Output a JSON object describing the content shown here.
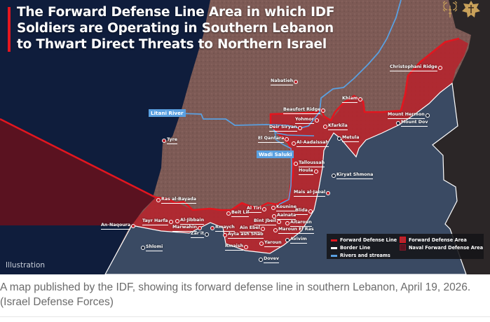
{
  "map": {
    "title_lines": [
      "The Forward Defense Line Area in which IDF",
      "Soldiers are Operating in Southern Lebanon",
      "to Thwart Direct Threats to Northern Israel"
    ],
    "logos": [
      "idf-spokesperson-logo",
      "idf-emblem-logo"
    ],
    "water_labels": {
      "litani": "Litani River",
      "wadi_saluki": "Wadi Saluki"
    },
    "places": [
      "Nabatieh",
      "Beaufort Ridge",
      "Yohmor",
      "Deir Siryan",
      "Kfarkila",
      "El Qantara",
      "Al-Aadaissah",
      "Talloussah",
      "Houla",
      "Tyre",
      "Khiam",
      "Christophani Ridge",
      "Mount Hermon",
      "Mount Dov",
      "Metula",
      "Kiryat Shmona",
      "Mais al-Jabal",
      "Ras al-Bayada",
      "Kounine",
      "Al Tiri",
      "Beit Lif",
      "Blida",
      "Aainata",
      "Tayr Harfa",
      "Al-Jibbain",
      "An-Naqoura",
      "Bint Jbeil",
      "Aitaroun",
      "Marwahin",
      "Rmaych",
      "Ain Ebel",
      "Maroun El Ras",
      "Zar'it",
      "Ayta ash Shab",
      "Avivim",
      "Yaroun",
      "Shlomi",
      "Rmaish",
      "Dovev"
    ],
    "watermark": "Illustration",
    "legend": {
      "forward_defense_line": "Forward Defense Line",
      "border_line": "Border Line",
      "rivers": "Rivers and streams",
      "forward_defense_area": "Forward Defense Area",
      "naval_forward_defense_area": "Naval Forward Defense Area"
    },
    "colors": {
      "forward_defense_line": "#e3161f",
      "forward_defense_area": "#b3262f",
      "naval_area": "#5a1220",
      "border": "#ffffff",
      "rivers": "#5aa0e0",
      "sea": "#0f1d3c",
      "lebanon_land": "#7d5a55",
      "israel_land": "#3a4a63"
    }
  },
  "caption": {
    "line1": "A map published by the IDF, showing its forward defense line in southern Lebanon, April 19, 2026.",
    "line2": "(Israel Defense Forces)"
  }
}
